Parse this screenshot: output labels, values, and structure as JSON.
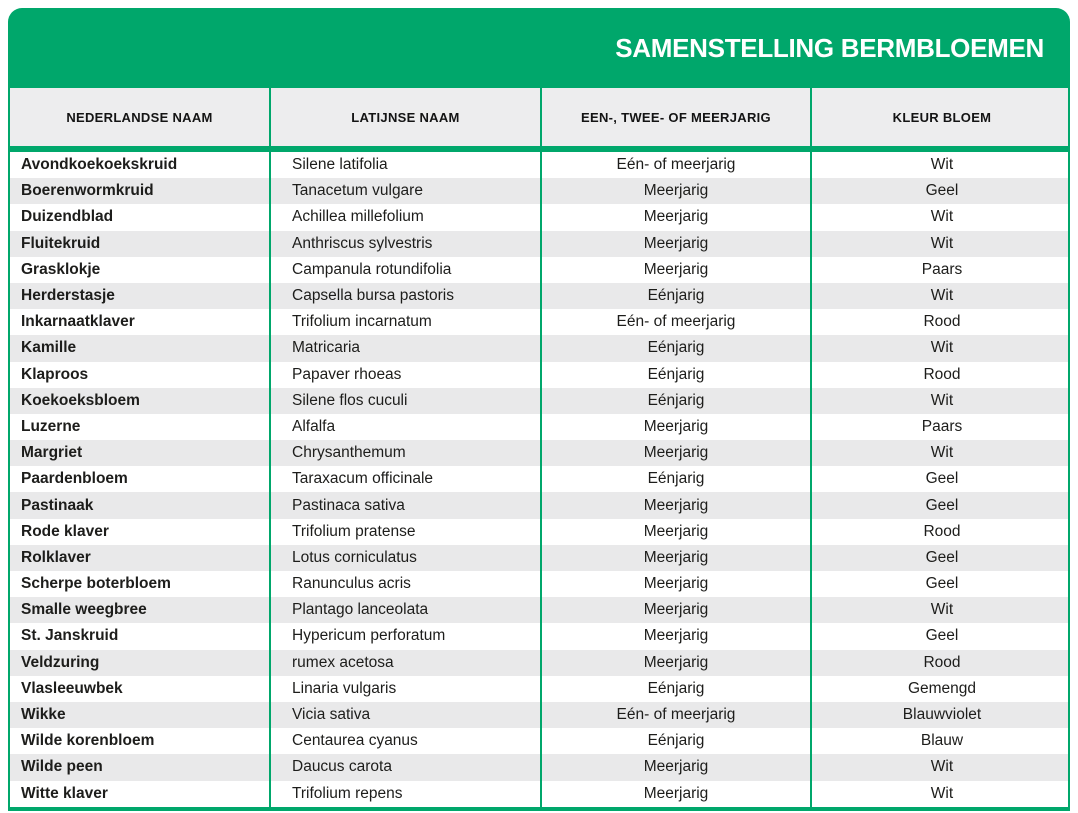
{
  "banner": {
    "title": "SAMENSTELLING BERMBLOEMEN"
  },
  "colors": {
    "brand_green": "#00a76b",
    "header_bg": "#ededee",
    "stripe_bg": "#e9e9ea",
    "row_bg": "#ffffff",
    "title_text": "#ffffff",
    "text_dark": "#1d1d1b"
  },
  "table": {
    "columns": [
      "NEDERLANDSE NAAM",
      "LATIJNSE NAAM",
      "EEN-, TWEE- OF MEERJARIG",
      "KLEUR BLOEM"
    ],
    "rows": [
      [
        "Avondkoekoekskruid",
        "Silene latifolia",
        "Eén- of meerjarig",
        "Wit"
      ],
      [
        "Boerenwormkruid",
        "Tanacetum vulgare",
        "Meerjarig",
        "Geel"
      ],
      [
        "Duizendblad",
        "Achillea millefolium",
        "Meerjarig",
        "Wit"
      ],
      [
        "Fluitekruid",
        "Anthriscus sylvestris",
        "Meerjarig",
        "Wit"
      ],
      [
        "Grasklokje",
        "Campanula rotundifolia",
        "Meerjarig",
        "Paars"
      ],
      [
        "Herderstasje",
        "Capsella bursa pastoris",
        "Eénjarig",
        "Wit"
      ],
      [
        "Inkarnaatklaver",
        "Trifolium incarnatum",
        "Eén- of meerjarig",
        "Rood"
      ],
      [
        "Kamille",
        "Matricaria",
        "Eénjarig",
        "Wit"
      ],
      [
        "Klaproos",
        "Papaver rhoeas",
        "Eénjarig",
        "Rood"
      ],
      [
        "Koekoeksbloem",
        "Silene flos cuculi",
        "Eénjarig",
        "Wit"
      ],
      [
        "Luzerne",
        "Alfalfa",
        "Meerjarig",
        "Paars"
      ],
      [
        "Margriet",
        "Chrysanthemum",
        "Meerjarig",
        "Wit"
      ],
      [
        "Paardenbloem",
        "Taraxacum officinale",
        "Eénjarig",
        "Geel"
      ],
      [
        "Pastinaak",
        "Pastinaca sativa",
        "Meerjarig",
        "Geel"
      ],
      [
        "Rode klaver",
        "Trifolium pratense",
        "Meerjarig",
        "Rood"
      ],
      [
        "Rolklaver",
        "Lotus corniculatus",
        "Meerjarig",
        "Geel"
      ],
      [
        "Scherpe boterbloem",
        "Ranunculus acris",
        "Meerjarig",
        "Geel"
      ],
      [
        "Smalle weegbree",
        "Plantago lanceolata",
        "Meerjarig",
        "Wit"
      ],
      [
        "St. Janskruid",
        "Hypericum perforatum",
        "Meerjarig",
        "Geel"
      ],
      [
        "Veldzuring",
        "rumex acetosa",
        "Meerjarig",
        "Rood"
      ],
      [
        "Vlasleeuwbek",
        "Linaria vulgaris",
        "Eénjarig",
        "Gemengd"
      ],
      [
        "Wikke",
        "Vicia sativa",
        "Eén- of meerjarig",
        "Blauwviolet"
      ],
      [
        "Wilde korenbloem",
        "Centaurea cyanus",
        "Eénjarig",
        "Blauw"
      ],
      [
        "Wilde peen",
        "Daucus carota",
        "Meerjarig",
        "Wit"
      ],
      [
        "Witte klaver",
        "Trifolium repens",
        "Meerjarig",
        "Wit"
      ]
    ]
  },
  "chart_data": {
    "type": "table",
    "title": "SAMENSTELLING BERMBLOEMEN",
    "columns": [
      "NEDERLANDSE NAAM",
      "LATIJNSE NAAM",
      "EEN-, TWEE- OF MEERJARIG",
      "KLEUR BLOEM"
    ],
    "rows": [
      [
        "Avondkoekoekskruid",
        "Silene latifolia",
        "Eén- of meerjarig",
        "Wit"
      ],
      [
        "Boerenwormkruid",
        "Tanacetum vulgare",
        "Meerjarig",
        "Geel"
      ],
      [
        "Duizendblad",
        "Achillea millefolium",
        "Meerjarig",
        "Wit"
      ],
      [
        "Fluitekruid",
        "Anthriscus sylvestris",
        "Meerjarig",
        "Wit"
      ],
      [
        "Grasklokje",
        "Campanula rotundifolia",
        "Meerjarig",
        "Paars"
      ],
      [
        "Herderstasje",
        "Capsella bursa pastoris",
        "Eénjarig",
        "Wit"
      ],
      [
        "Inkarnaatklaver",
        "Trifolium incarnatum",
        "Eén- of meerjarig",
        "Rood"
      ],
      [
        "Kamille",
        "Matricaria",
        "Eénjarig",
        "Wit"
      ],
      [
        "Klaproos",
        "Papaver rhoeas",
        "Eénjarig",
        "Rood"
      ],
      [
        "Koekoeksbloem",
        "Silene flos cuculi",
        "Eénjarig",
        "Wit"
      ],
      [
        "Luzerne",
        "Alfalfa",
        "Meerjarig",
        "Paars"
      ],
      [
        "Margriet",
        "Chrysanthemum",
        "Meerjarig",
        "Wit"
      ],
      [
        "Paardenbloem",
        "Taraxacum officinale",
        "Eénjarig",
        "Geel"
      ],
      [
        "Pastinaak",
        "Pastinaca sativa",
        "Meerjarig",
        "Geel"
      ],
      [
        "Rode klaver",
        "Trifolium pratense",
        "Meerjarig",
        "Rood"
      ],
      [
        "Rolklaver",
        "Lotus corniculatus",
        "Meerjarig",
        "Geel"
      ],
      [
        "Scherpe boterbloem",
        "Ranunculus acris",
        "Meerjarig",
        "Geel"
      ],
      [
        "Smalle weegbree",
        "Plantago lanceolata",
        "Meerjarig",
        "Wit"
      ],
      [
        "St. Janskruid",
        "Hypericum perforatum",
        "Meerjarig",
        "Geel"
      ],
      [
        "Veldzuring",
        "rumex acetosa",
        "Meerjarig",
        "Rood"
      ],
      [
        "Vlasleeuwbek",
        "Linaria vulgaris",
        "Eénjarig",
        "Gemengd"
      ],
      [
        "Wikke",
        "Vicia sativa",
        "Eén- of meerjarig",
        "Blauwviolet"
      ],
      [
        "Wilde korenbloem",
        "Centaurea cyanus",
        "Eénjarig",
        "Blauw"
      ],
      [
        "Wilde peen",
        "Daucus carota",
        "Meerjarig",
        "Wit"
      ],
      [
        "Witte klaver",
        "Trifolium repens",
        "Meerjarig",
        "Wit"
      ]
    ]
  }
}
